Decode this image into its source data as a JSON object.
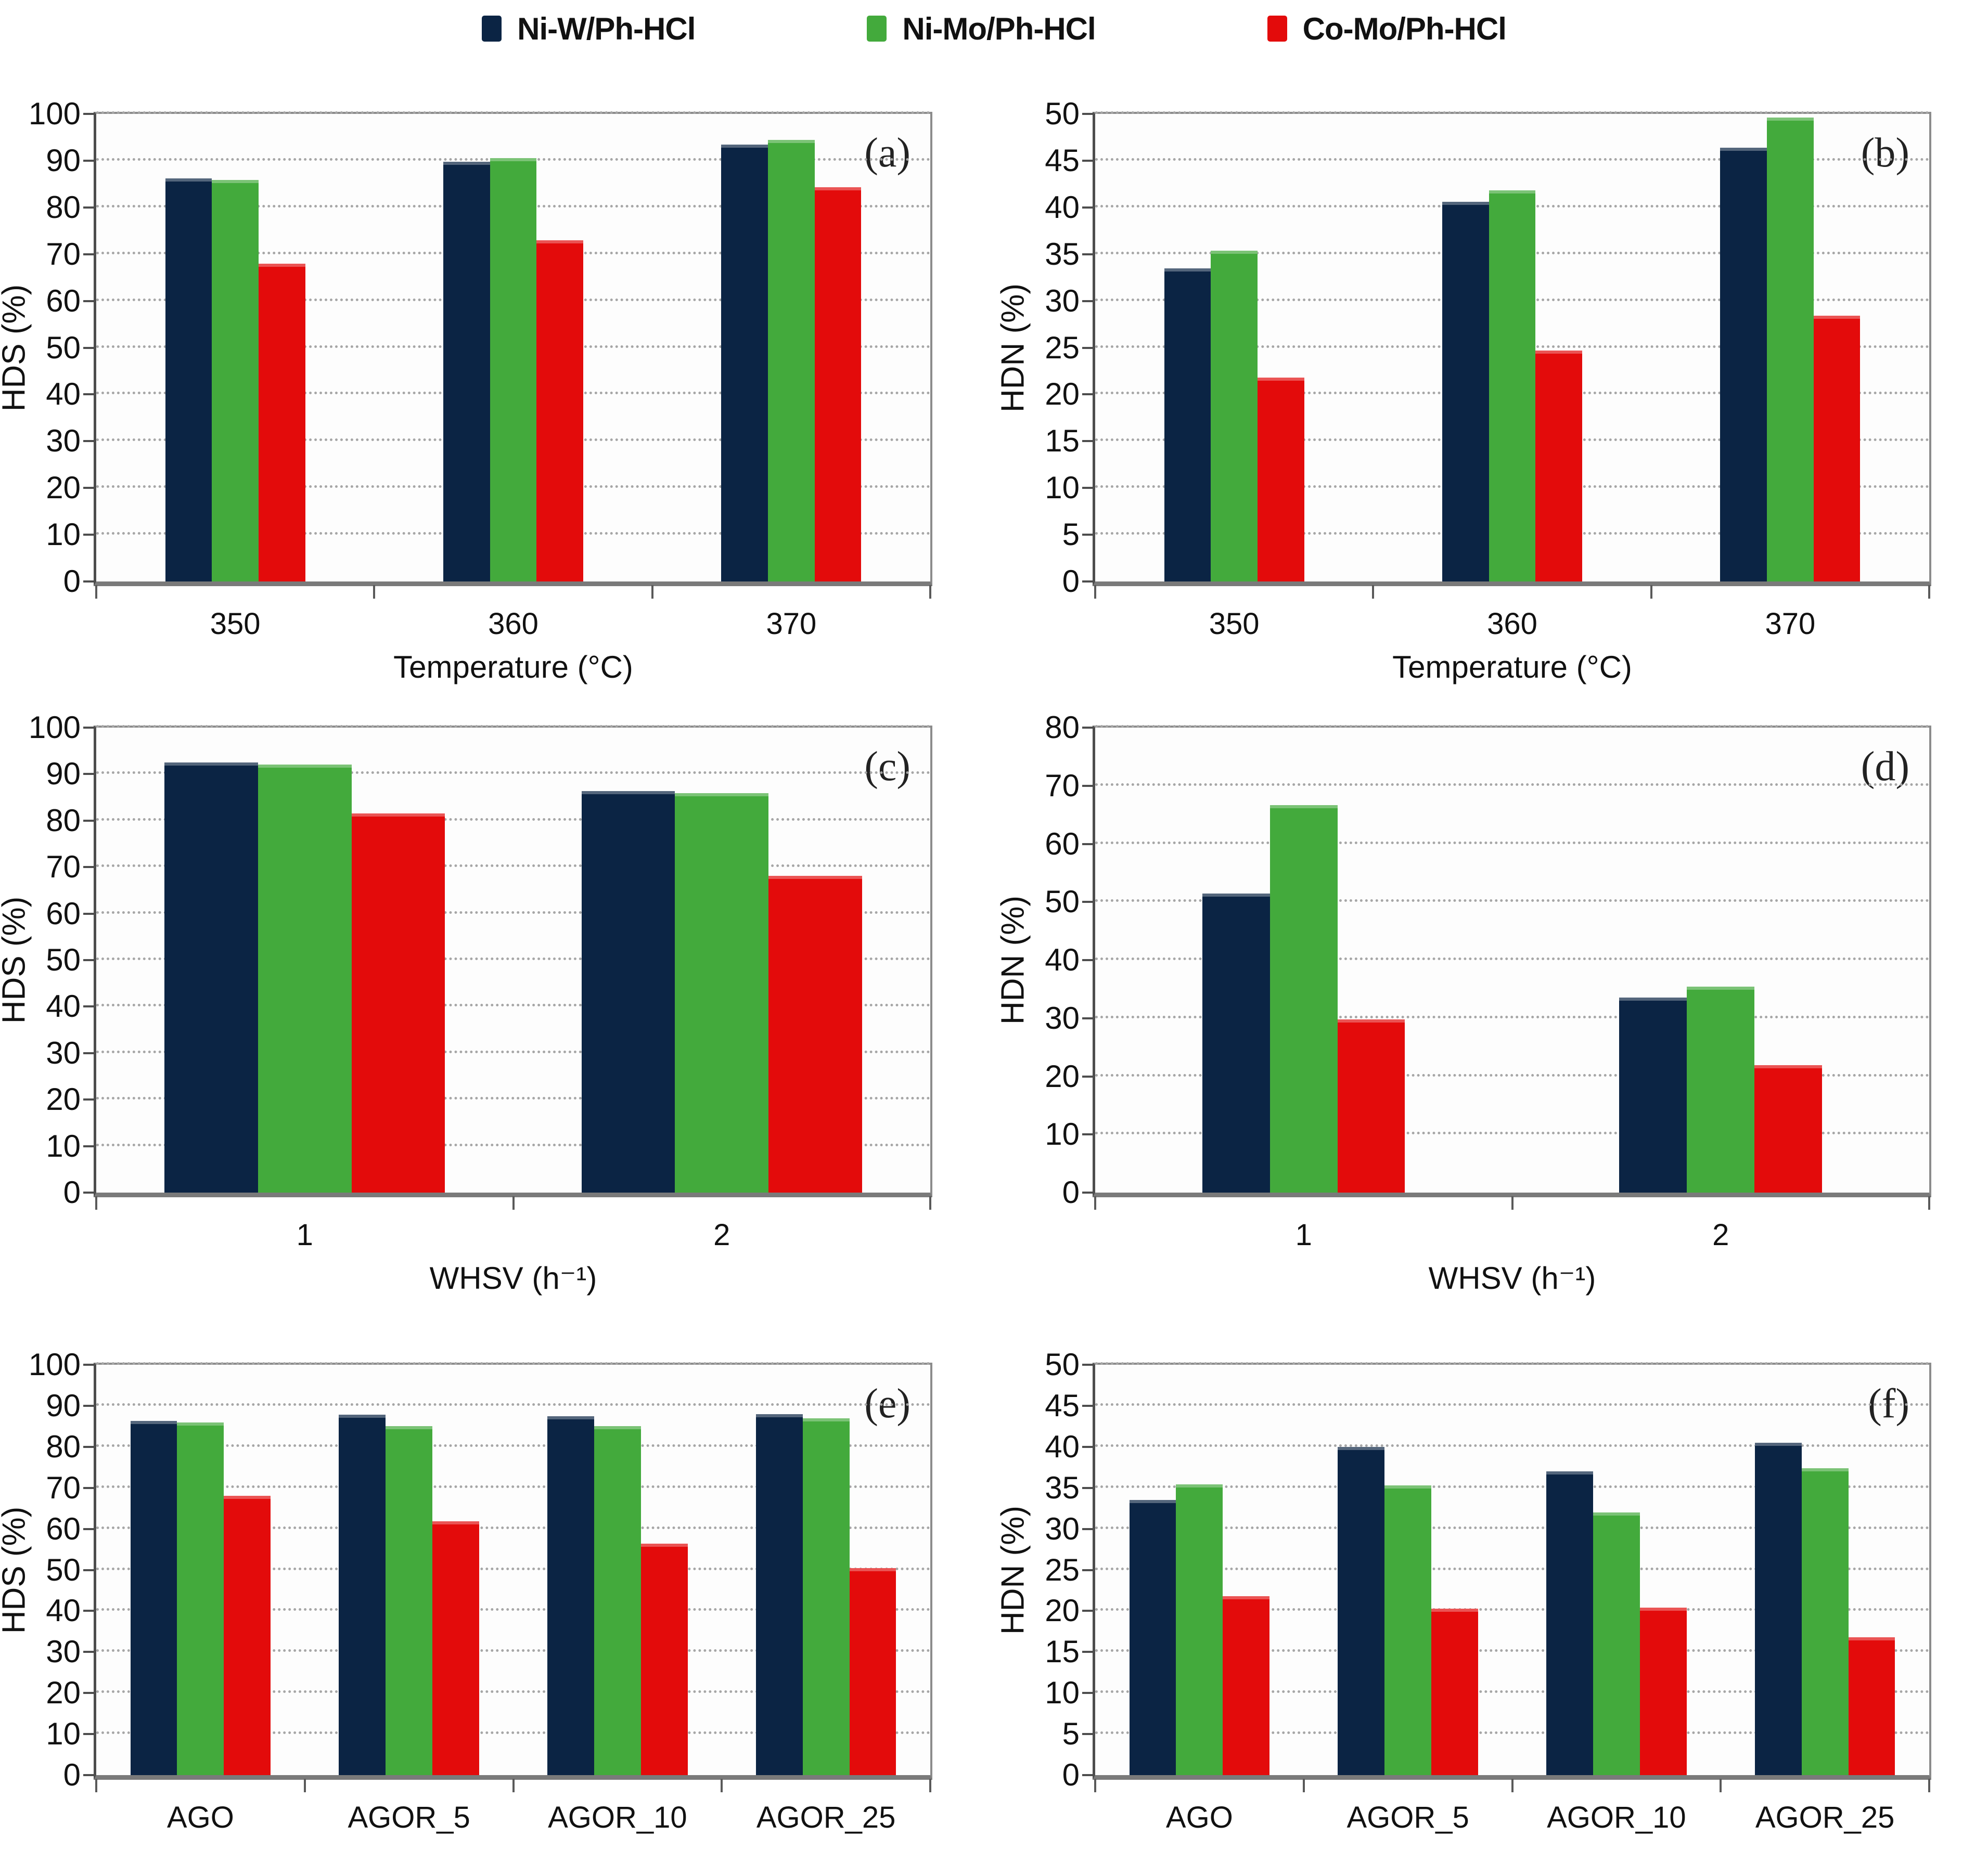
{
  "figure": {
    "legend": {
      "items": [
        {
          "label": "Ni-W/Ph-HCl",
          "color": "#0b2444"
        },
        {
          "label": "Ni-Mo/Ph-HCl",
          "color": "#43aa3c"
        },
        {
          "label": "Co-Mo/Ph-HCl",
          "color": "#e30b0b"
        }
      ],
      "position": "top-center"
    }
  },
  "chart_data": [
    {
      "id": "a",
      "type": "bar",
      "panel_label": "(a)",
      "ylabel": "HDS (%)",
      "xlabel": "Temperature (°C)",
      "categories": [
        "350",
        "360",
        "370"
      ],
      "ylim": [
        0,
        100
      ],
      "ytick_step": 10,
      "grid": "dotted-horizontal",
      "series": [
        {
          "name": "Ni-W/Ph-HCl",
          "color": "#0b2444",
          "values": [
            86.2,
            89.8,
            93.4
          ]
        },
        {
          "name": "Ni-Mo/Ph-HCl",
          "color": "#43aa3c",
          "values": [
            85.9,
            90.6,
            94.4
          ]
        },
        {
          "name": "Co-Mo/Ph-HCl",
          "color": "#e30b0b",
          "values": [
            68.0,
            73.0,
            84.3
          ]
        }
      ]
    },
    {
      "id": "b",
      "type": "bar",
      "panel_label": "(b)",
      "ylabel": "HDN (%)",
      "xlabel": "Temperature (°C)",
      "categories": [
        "350",
        "360",
        "370"
      ],
      "ylim": [
        0,
        50
      ],
      "ytick_step": 5,
      "grid": "dotted-horizontal",
      "series": [
        {
          "name": "Ni-W/Ph-HCl",
          "color": "#0b2444",
          "values": [
            33.5,
            40.6,
            46.4
          ]
        },
        {
          "name": "Ni-Mo/Ph-HCl",
          "color": "#43aa3c",
          "values": [
            35.4,
            41.8,
            49.6
          ]
        },
        {
          "name": "Co-Mo/Ph-HCl",
          "color": "#e30b0b",
          "values": [
            21.8,
            24.7,
            28.4
          ]
        }
      ]
    },
    {
      "id": "c",
      "type": "bar",
      "panel_label": "(c)",
      "ylabel": "HDS (%)",
      "xlabel": "WHSV (h⁻¹)",
      "categories": [
        "1",
        "2"
      ],
      "ylim": [
        0,
        100
      ],
      "ytick_step": 10,
      "grid": "dotted-horizontal",
      "series": [
        {
          "name": "Ni-W/Ph-HCl",
          "color": "#0b2444",
          "values": [
            92.5,
            86.3
          ]
        },
        {
          "name": "Ni-Mo/Ph-HCl",
          "color": "#43aa3c",
          "values": [
            92.1,
            85.9
          ]
        },
        {
          "name": "Co-Mo/Ph-HCl",
          "color": "#e30b0b",
          "values": [
            81.6,
            68.1
          ]
        }
      ]
    },
    {
      "id": "d",
      "type": "bar",
      "panel_label": "(d)",
      "ylabel": "HDN (%)",
      "xlabel": "WHSV (h⁻¹)",
      "categories": [
        "1",
        "2"
      ],
      "ylim": [
        0,
        80
      ],
      "ytick_step": 10,
      "grid": "dotted-horizontal",
      "series": [
        {
          "name": "Ni-W/Ph-HCl",
          "color": "#0b2444",
          "values": [
            51.5,
            33.6
          ]
        },
        {
          "name": "Ni-Mo/Ph-HCl",
          "color": "#43aa3c",
          "values": [
            66.7,
            35.4
          ]
        },
        {
          "name": "Co-Mo/Ph-HCl",
          "color": "#e30b0b",
          "values": [
            29.8,
            21.9
          ]
        }
      ]
    },
    {
      "id": "e",
      "type": "bar",
      "panel_label": "(e)",
      "ylabel": "HDS (%)",
      "categories": [
        "AGO",
        "AGOR_5",
        "AGOR_10",
        "AGOR_25"
      ],
      "ylim": [
        0,
        100
      ],
      "ytick_step": 10,
      "grid": "dotted-horizontal",
      "series": [
        {
          "name": "Ni-W/Ph-HCl",
          "color": "#0b2444",
          "values": [
            86.3,
            87.8,
            87.4,
            88.0
          ]
        },
        {
          "name": "Ni-Mo/Ph-HCl",
          "color": "#43aa3c",
          "values": [
            85.9,
            85.0,
            85.1,
            86.9
          ]
        },
        {
          "name": "Co-Mo/Ph-HCl",
          "color": "#e30b0b",
          "values": [
            68.1,
            61.8,
            56.4,
            50.5
          ]
        }
      ]
    },
    {
      "id": "f",
      "type": "bar",
      "panel_label": "(f)",
      "ylabel": "HDN (%)",
      "categories": [
        "AGO",
        "AGOR_5",
        "AGOR_10",
        "AGOR_25"
      ],
      "ylim": [
        0,
        50
      ],
      "ytick_step": 5,
      "grid": "dotted-horizontal",
      "series": [
        {
          "name": "Ni-W/Ph-HCl",
          "color": "#0b2444",
          "values": [
            33.5,
            40.0,
            37.0,
            40.5
          ]
        },
        {
          "name": "Ni-Mo/Ph-HCl",
          "color": "#43aa3c",
          "values": [
            35.4,
            35.3,
            32.0,
            37.4
          ]
        },
        {
          "name": "Co-Mo/Ph-HCl",
          "color": "#e30b0b",
          "values": [
            21.8,
            20.3,
            20.4,
            16.8
          ]
        }
      ]
    }
  ]
}
